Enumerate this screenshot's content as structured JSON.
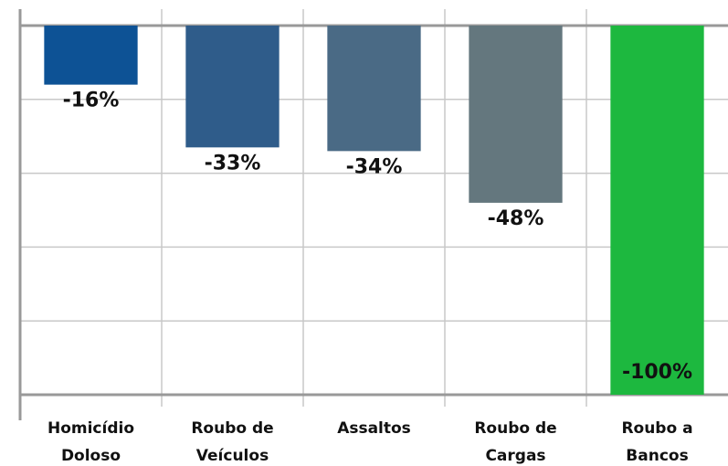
{
  "chart_data": {
    "type": "bar",
    "categories": [
      "Homicídio Doloso",
      "Roubo de Veículos",
      "Assaltos",
      "Roubo de Cargas",
      "Roubo a Bancos"
    ],
    "values": [
      -16,
      -33,
      -34,
      -48,
      -100
    ],
    "value_labels": [
      "-16%",
      "-33%",
      "-34%",
      "-48%",
      "-100%"
    ],
    "colors": [
      "#0d5295",
      "#2f5c8a",
      "#4a6a85",
      "#64777e",
      "#1db83f"
    ],
    "ylim": [
      -100,
      0
    ],
    "yticks": [
      0,
      -20,
      -40,
      -60,
      -80,
      -100
    ],
    "grid": true
  }
}
